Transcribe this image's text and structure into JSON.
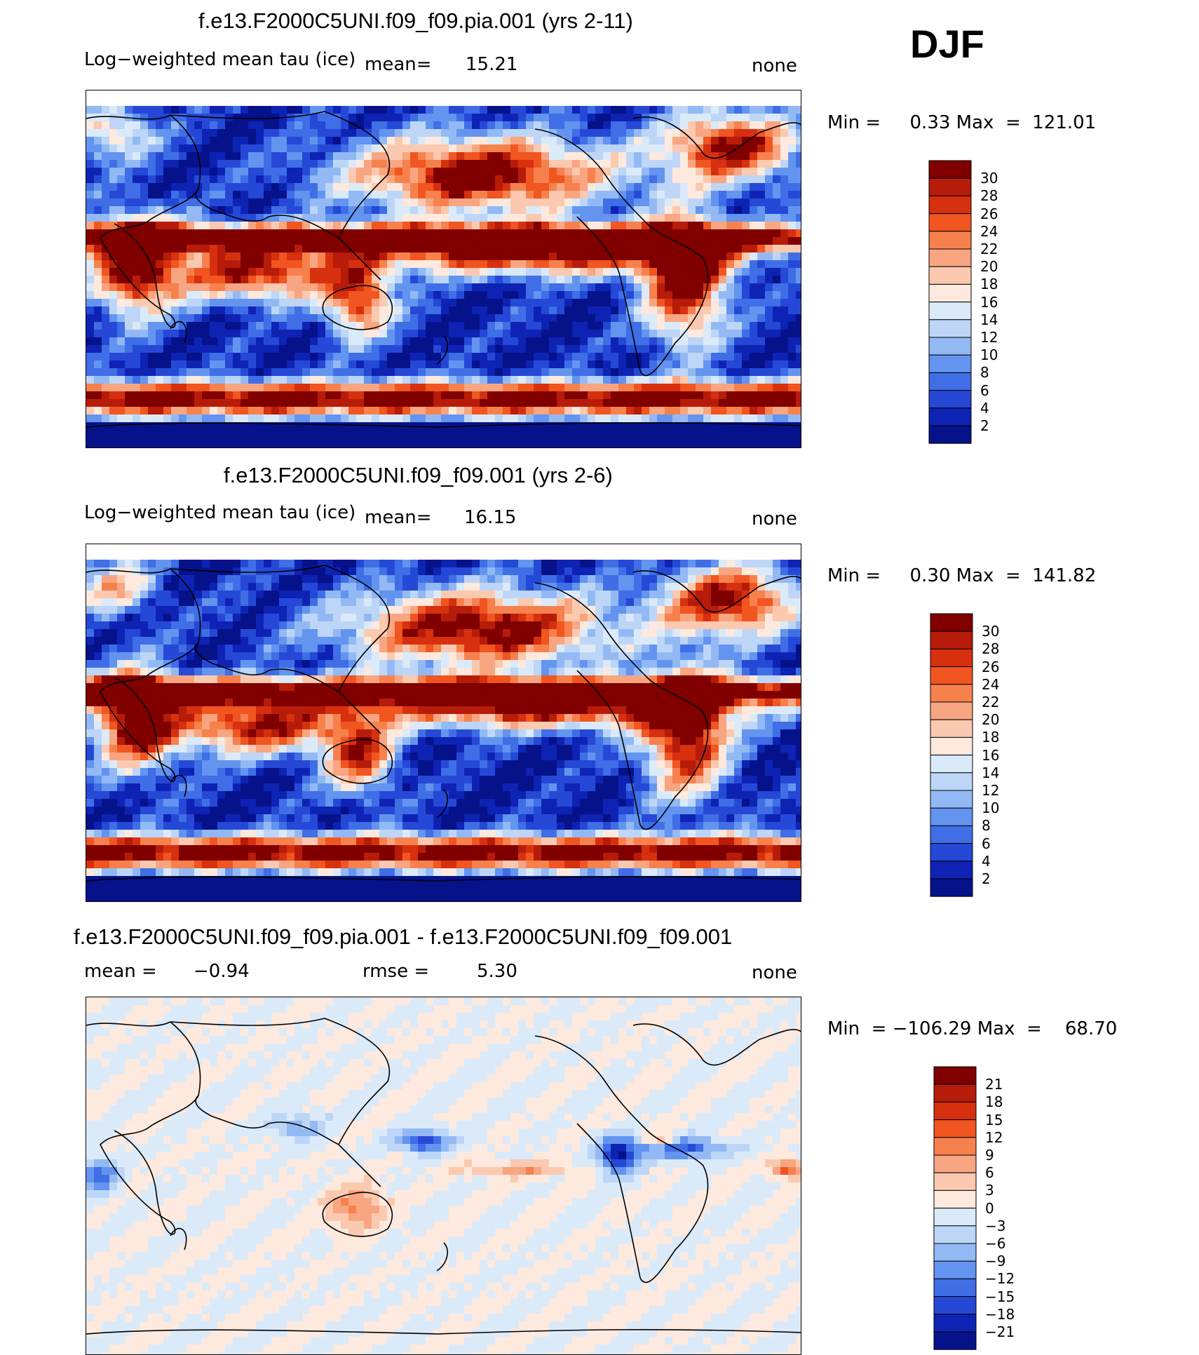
{
  "season": "DJF",
  "chart_data": [
    {
      "type": "heatmap",
      "title": "f.e13.F2000C5UNI.f09_f09.pia.001 (yrs 2-11)",
      "variable": "Log−weighted mean tau (ice)",
      "stat_label": "mean=",
      "stat_value": "15.21",
      "units": "none",
      "min_max": "Min =     0.33 Max  =  121.01",
      "colorbar_levels": [
        "30",
        "28",
        "26",
        "24",
        "22",
        "20",
        "18",
        "16",
        "14",
        "12",
        "10",
        "8",
        "6",
        "4",
        "2"
      ],
      "colorbar_colors": [
        "#800000",
        "#b71c0a",
        "#d7300f",
        "#f15520",
        "#f7814d",
        "#f8a582",
        "#fbc9b0",
        "#fde9dd",
        "#dbeaf9",
        "#bdd6f7",
        "#93b9f5",
        "#6394ef",
        "#3f6ee6",
        "#2549d6",
        "#0e23b4",
        "#05128a"
      ]
    },
    {
      "type": "heatmap",
      "title": "f.e13.F2000C5UNI.f09_f09.001 (yrs 2-6)",
      "variable": "Log−weighted mean tau (ice)",
      "stat_label": "mean=",
      "stat_value": "16.15",
      "units": "none",
      "min_max": "Min =     0.30 Max  =  141.82",
      "colorbar_levels": [
        "30",
        "28",
        "26",
        "24",
        "22",
        "20",
        "18",
        "16",
        "14",
        "12",
        "10",
        "8",
        "6",
        "4",
        "2"
      ],
      "colorbar_colors": [
        "#800000",
        "#b71c0a",
        "#d7300f",
        "#f15520",
        "#f7814d",
        "#f8a582",
        "#fbc9b0",
        "#fde9dd",
        "#dbeaf9",
        "#bdd6f7",
        "#93b9f5",
        "#6394ef",
        "#3f6ee6",
        "#2549d6",
        "#0e23b4",
        "#05128a"
      ]
    },
    {
      "type": "heatmap",
      "title": "f.e13.F2000C5UNI.f09_f09.pia.001 - f.e13.F2000C5UNI.f09_f09.001",
      "mean_label": "mean =",
      "mean_value": "−0.94",
      "rmse_label": "rmse =",
      "rmse_value": "5.30",
      "units": "none",
      "min_max": "Min  = −106.29 Max  =    68.70",
      "colorbar_levels": [
        "21",
        "18",
        "15",
        "12",
        "9",
        "6",
        "3",
        "0",
        "−3",
        "−6",
        "−9",
        "−12",
        "−15",
        "−18",
        "−21"
      ],
      "colorbar_colors": [
        "#800000",
        "#b71c0a",
        "#d7300f",
        "#f15520",
        "#f7814d",
        "#f8a582",
        "#fbc9b0",
        "#fde9dd",
        "#dbeaf9",
        "#bdd6f7",
        "#93b9f5",
        "#6394ef",
        "#3f6ee6",
        "#2549d6",
        "#0e23b4",
        "#05128a"
      ]
    }
  ]
}
